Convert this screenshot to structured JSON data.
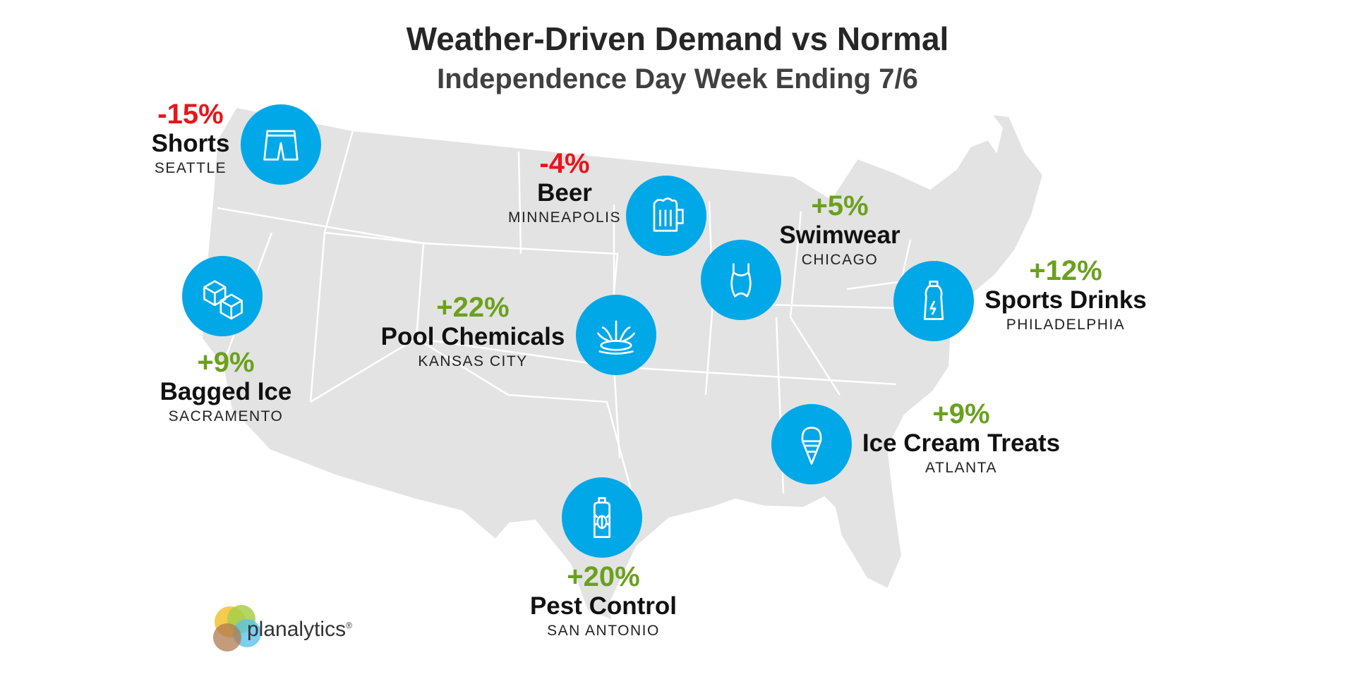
{
  "title": "Weather-Driven Demand vs Normal",
  "subtitle": "Independence Day Week Ending 7/6",
  "colors": {
    "negative": "#e8151b",
    "positive": "#6aa11d",
    "circle": "#00a8e8",
    "map": "#e3e3e3"
  },
  "items": [
    {
      "pct": "-15%",
      "product": "Shorts",
      "city": "SEATTLE",
      "icon": "shorts-icon"
    },
    {
      "pct": "-4%",
      "product": "Beer",
      "city": "MINNEAPOLIS",
      "icon": "beer-mug-icon"
    },
    {
      "pct": "+5%",
      "product": "Swimwear",
      "city": "CHICAGO",
      "icon": "swimsuit-icon"
    },
    {
      "pct": "+12%",
      "product": "Sports Drinks",
      "city": "PHILADELPHIA",
      "icon": "sports-drink-bottle-icon"
    },
    {
      "pct": "+9%",
      "product": "Bagged Ice",
      "city": "SACRAMENTO",
      "icon": "ice-cubes-icon"
    },
    {
      "pct": "+22%",
      "product": "Pool Chemicals",
      "city": "KANSAS CITY",
      "icon": "water-splash-icon"
    },
    {
      "pct": "+9%",
      "product": "Ice Cream Treats",
      "city": "ATLANTA",
      "icon": "ice-cream-cone-icon"
    },
    {
      "pct": "+20%",
      "product": "Pest Control",
      "city": "SAN ANTONIO",
      "icon": "bug-spray-can-icon"
    }
  ],
  "logo": {
    "text": "planalytics",
    "mark": "®"
  }
}
